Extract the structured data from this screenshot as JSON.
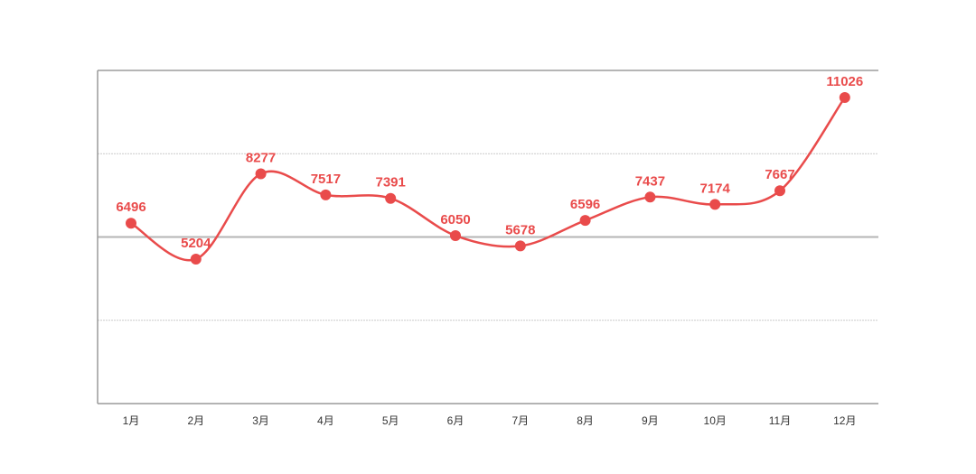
{
  "chart_data": {
    "type": "line",
    "title": "",
    "xlabel": "",
    "ylabel": "",
    "categories": [
      "1月",
      "2月",
      "3月",
      "4月",
      "5月",
      "6月",
      "7月",
      "8月",
      "9月",
      "10月",
      "11月",
      "12月"
    ],
    "series": [
      {
        "values": [
          6496,
          5204,
          8277,
          7517,
          7391,
          6050,
          5678,
          6596,
          7437,
          7174,
          7667,
          11026
        ],
        "color": "#e94b4b"
      }
    ],
    "ylim": [
      0,
      12000
    ],
    "y_gridlines": [
      3000,
      6000,
      9000,
      12000
    ],
    "grid": true,
    "legend": "none",
    "data_labels": true,
    "smooth": true
  }
}
